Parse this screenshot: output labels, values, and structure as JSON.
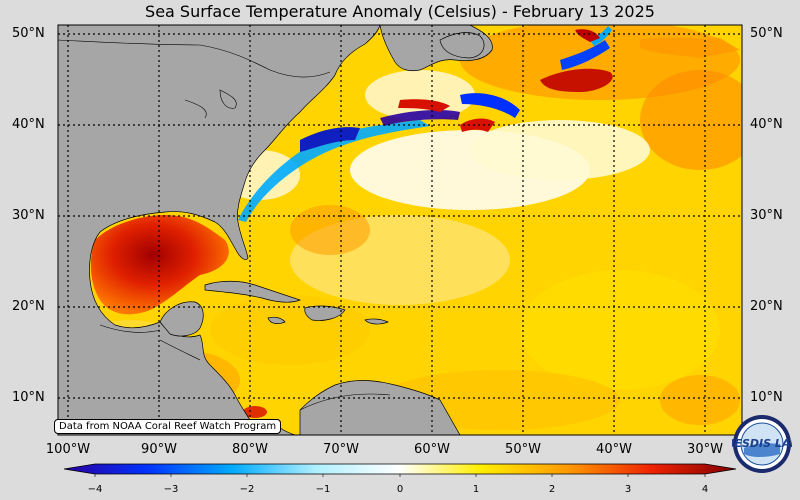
{
  "title": "Sea Surface Temperature Anomaly (Celsius) - February 13 2025",
  "lat_labels_left": [
    "50°N",
    "40°N",
    "30°N",
    "20°N",
    "10°N"
  ],
  "lat_labels_right": [
    "50°N",
    "40°N",
    "30°N",
    "20°N",
    "10°N"
  ],
  "lon_labels": [
    "100°W",
    "90°W",
    "80°W",
    "70°W",
    "60°W",
    "50°W",
    "40°W",
    "30°W"
  ],
  "colorbar": {
    "ticks": [
      "−4",
      "−3",
      "−2",
      "−1",
      "0",
      "1",
      "2",
      "3",
      "4"
    ],
    "min": -4,
    "max": 4,
    "colors": [
      "#2a00a0",
      "#0033ff",
      "#00aaff",
      "#b0f0ff",
      "#ffffff",
      "#ffee00",
      "#ff9900",
      "#ee2200",
      "#800000"
    ]
  },
  "credit": "Data from NOAA Coral Reef Watch Program",
  "logo": {
    "text": "NESDIS LAB",
    "icon": "agency-logo-icon"
  }
}
